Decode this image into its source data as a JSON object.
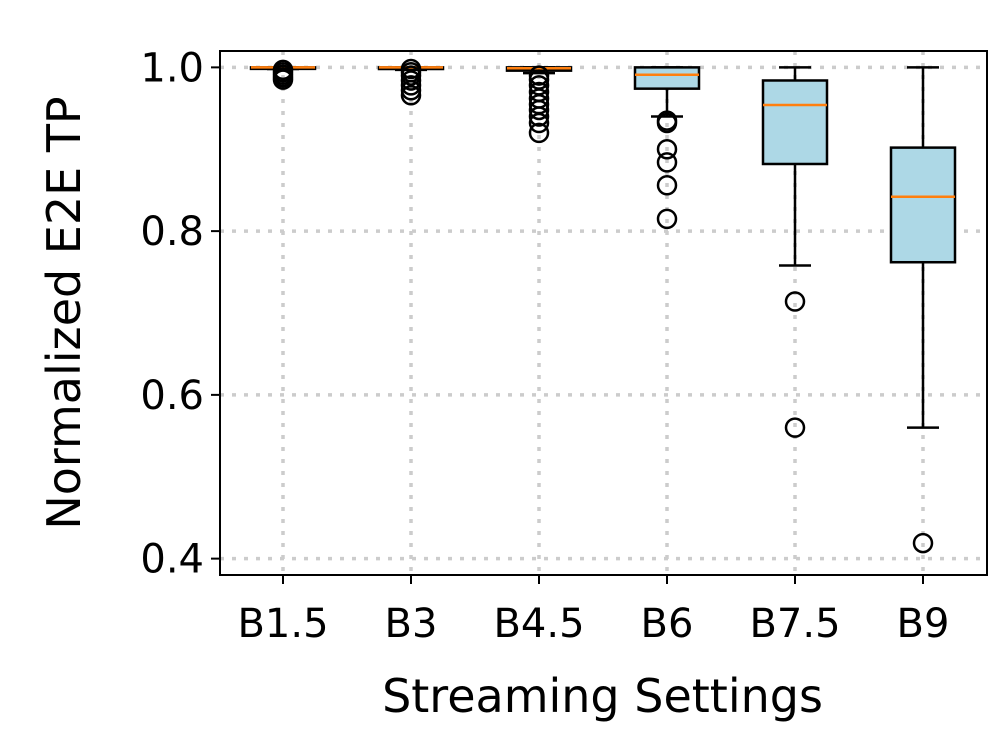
{
  "chart_data": {
    "type": "box",
    "xlabel": "Streaming Settings",
    "ylabel": "Normalized E2E TP",
    "ylim": [
      0.38,
      1.02
    ],
    "yticks": [
      0.4,
      0.6,
      0.8,
      1.0
    ],
    "ytick_labels": [
      "0.4",
      "0.6",
      "0.8",
      "1.0"
    ],
    "grid": true,
    "categories": [
      "B1.5",
      "B3",
      "B4.5",
      "B6",
      "B7.5",
      "B9"
    ],
    "boxes": [
      {
        "category": "B1.5",
        "whisker_low": 0.998,
        "q1": 0.999,
        "median": 1.0,
        "q3": 1.0,
        "whisker_high": 1.0,
        "outliers": [
          0.985,
          0.988,
          0.991,
          0.994,
          0.997
        ]
      },
      {
        "category": "B3",
        "whisker_low": 0.997,
        "q1": 0.998,
        "median": 1.0,
        "q3": 1.0,
        "whisker_high": 1.0,
        "outliers": [
          0.966,
          0.972,
          0.978,
          0.984,
          0.99,
          0.994,
          0.998
        ]
      },
      {
        "category": "B4.5",
        "whisker_low": 0.993,
        "q1": 0.996,
        "median": 0.999,
        "q3": 1.0,
        "whisker_high": 1.0,
        "outliers": [
          0.92,
          0.932,
          0.94,
          0.948,
          0.955,
          0.962,
          0.97,
          0.978,
          0.985,
          0.99
        ]
      },
      {
        "category": "B6",
        "whisker_low": 0.94,
        "q1": 0.974,
        "median": 0.991,
        "q3": 1.0,
        "whisker_high": 1.0,
        "outliers": [
          0.815,
          0.856,
          0.884,
          0.9,
          0.932,
          0.935
        ]
      },
      {
        "category": "B7.5",
        "whisker_low": 0.758,
        "q1": 0.882,
        "median": 0.954,
        "q3": 0.984,
        "whisker_high": 1.0,
        "outliers": [
          0.714,
          0.56
        ]
      },
      {
        "category": "B9",
        "whisker_low": 0.56,
        "q1": 0.762,
        "median": 0.842,
        "q3": 0.902,
        "whisker_high": 1.0,
        "outliers": [
          0.419
        ]
      }
    ],
    "colors": {
      "box_fill": "#add8e6",
      "median": "#ff7f0e",
      "edge": "#000000",
      "grid": "#cccccc"
    }
  }
}
